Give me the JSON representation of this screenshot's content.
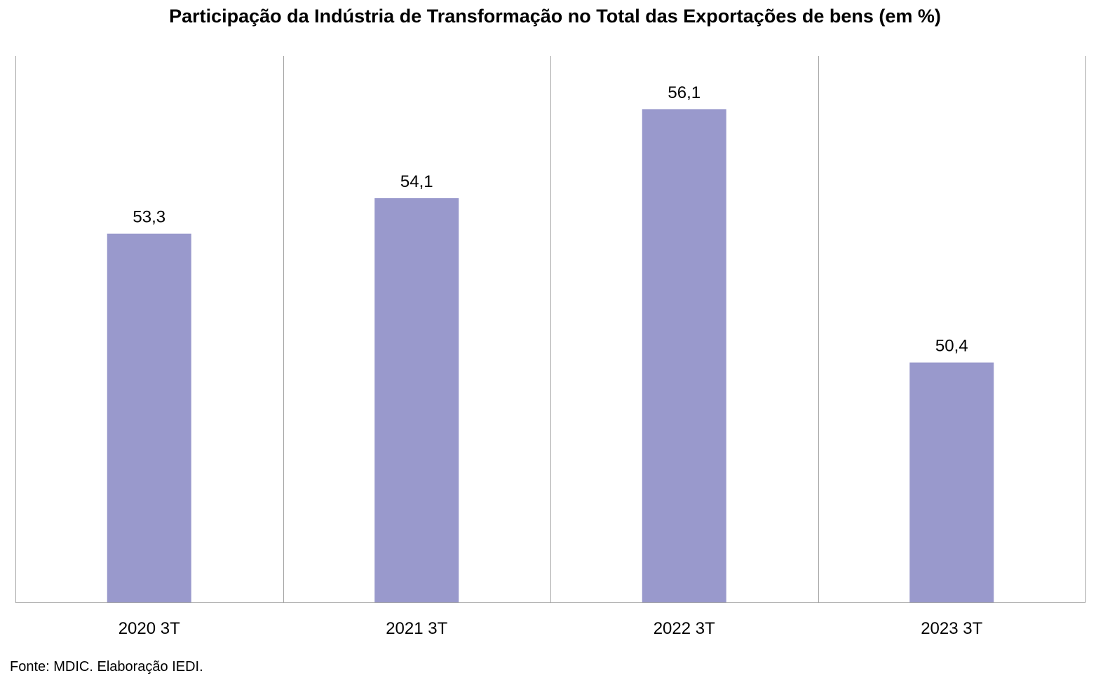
{
  "chart_data": {
    "type": "bar",
    "title": "Participação da Indústria de Transformação no Total das Exportações de bens  (em %)",
    "categories": [
      "2020 3T",
      "2021 3T",
      "2022 3T",
      "2023 3T"
    ],
    "values": [
      53.3,
      54.1,
      56.1,
      50.4
    ],
    "data_labels": [
      "53,3",
      "54,1",
      "56,1",
      "50,4"
    ],
    "xlabel": "",
    "ylabel": "",
    "ylim": [
      45,
      57.3
    ],
    "y_axis_visible": false,
    "grid": "vertical category separators",
    "legend": "none",
    "bar_color": "#9999cc",
    "source": "Fonte: MDIC. Elaboração IEDI."
  }
}
